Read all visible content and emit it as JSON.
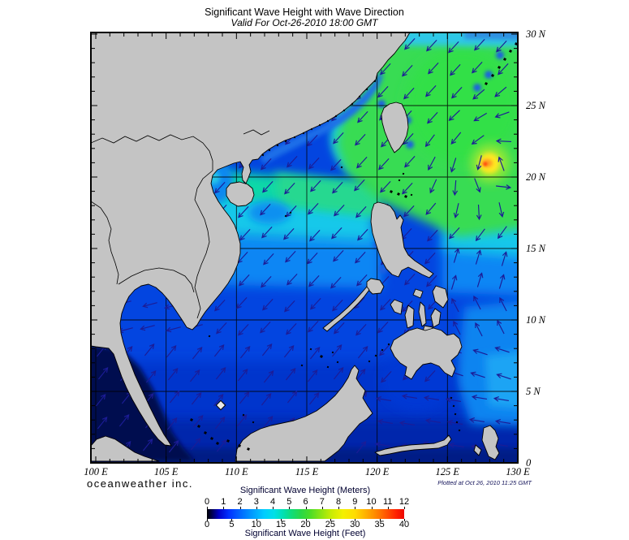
{
  "title": "Significant Wave Height with Wave Direction",
  "subtitle": "Valid For Oct-26-2010 18:00 GMT",
  "branding": "oceanweather inc.",
  "plotted_at": "Plotted at Oct 26, 2010 11:25 GMT",
  "axes": {
    "lat_labels": [
      "30 N",
      "25 N",
      "20 N",
      "15 N",
      "10 N",
      "5 N",
      "0"
    ],
    "lon_labels": [
      "100 E",
      "105 E",
      "110 E",
      "115 E",
      "120 E",
      "125 E",
      "130 E"
    ],
    "lat_range_deg": [
      0,
      30
    ],
    "lon_range_deg": [
      100,
      130
    ]
  },
  "legend": {
    "meters_title": "Significant Wave Height (Meters)",
    "feet_title": "Significant Wave Height (Feet)",
    "meters_ticks": [
      "0",
      "1",
      "2",
      "3",
      "4",
      "5",
      "6",
      "7",
      "8",
      "9",
      "10",
      "11",
      "12"
    ],
    "feet_ticks": [
      "0",
      "5",
      "10",
      "15",
      "20",
      "25",
      "30",
      "35",
      "40"
    ],
    "gradient": [
      {
        "p": 0,
        "c": "#000000"
      },
      {
        "p": 0.03,
        "c": "#000060"
      },
      {
        "p": 0.06,
        "c": "#0000c8"
      },
      {
        "p": 0.11,
        "c": "#0030ff"
      },
      {
        "p": 0.17,
        "c": "#0068ff"
      },
      {
        "p": 0.23,
        "c": "#009cff"
      },
      {
        "p": 0.29,
        "c": "#00ccff"
      },
      {
        "p": 0.34,
        "c": "#00e0e8"
      },
      {
        "p": 0.385,
        "c": "#00e0b4"
      },
      {
        "p": 0.43,
        "c": "#10dc78"
      },
      {
        "p": 0.475,
        "c": "#28d848"
      },
      {
        "p": 0.52,
        "c": "#48dc28"
      },
      {
        "p": 0.575,
        "c": "#88e414"
      },
      {
        "p": 0.63,
        "c": "#c8ec04"
      },
      {
        "p": 0.69,
        "c": "#f4f000"
      },
      {
        "p": 0.75,
        "c": "#ffdc00"
      },
      {
        "p": 0.8,
        "c": "#ffb400"
      },
      {
        "p": 0.855,
        "c": "#ff8800"
      },
      {
        "p": 0.91,
        "c": "#ff5400"
      },
      {
        "p": 0.96,
        "c": "#ff2000"
      },
      {
        "p": 1,
        "c": "#ec0800"
      }
    ]
  },
  "map": {
    "land_color": "#c4c4c4",
    "coast_color": "#000000",
    "arrow_color": "#1c1c96",
    "ocean_base": "#0345e0",
    "grid_color": "#000000"
  }
}
